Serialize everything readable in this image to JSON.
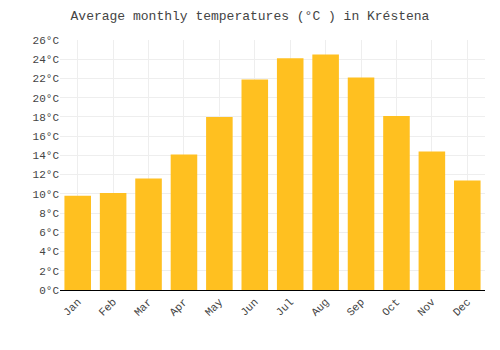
{
  "chart_data": {
    "type": "bar",
    "title": "Average monthly temperatures (°C ) in Kréstena",
    "categories": [
      "Jan",
      "Feb",
      "Mar",
      "Apr",
      "May",
      "Jun",
      "Jul",
      "Aug",
      "Sep",
      "Oct",
      "Nov",
      "Dec"
    ],
    "values": [
      9.8,
      10.1,
      11.6,
      14.1,
      18.0,
      21.9,
      24.1,
      24.5,
      22.1,
      18.1,
      14.4,
      11.4
    ],
    "color": "#FFC020",
    "ylim": [
      0,
      26
    ],
    "yticks": [
      {
        "value": 0,
        "label": "0°C"
      },
      {
        "value": 2,
        "label": "2°C"
      },
      {
        "value": 4,
        "label": "4°C"
      },
      {
        "value": 6,
        "label": "6°C"
      },
      {
        "value": 8,
        "label": "8°C"
      },
      {
        "value": 10,
        "label": "10°C"
      },
      {
        "value": 12,
        "label": "12°C"
      },
      {
        "value": 14,
        "label": "14°C"
      },
      {
        "value": 16,
        "label": "16°C"
      },
      {
        "value": 18,
        "label": "18°C"
      },
      {
        "value": 20,
        "label": "20°C"
      },
      {
        "value": 22,
        "label": "22°C"
      },
      {
        "value": 24,
        "label": "24°C"
      },
      {
        "value": 26,
        "label": "26°C"
      }
    ],
    "grid": true
  }
}
